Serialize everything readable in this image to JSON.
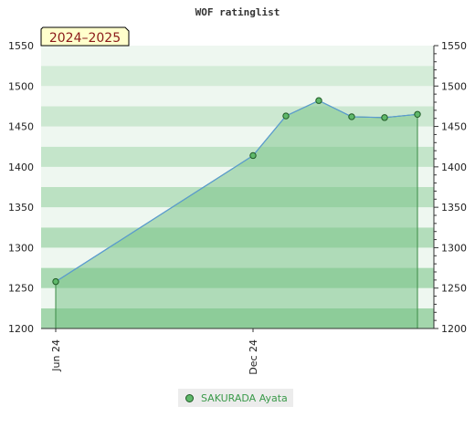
{
  "chart_data": {
    "type": "area",
    "title": "WOF ratinglist",
    "period_label": "2024–2025",
    "ylim": [
      1200,
      1550
    ],
    "yticks": [
      1200,
      1250,
      1300,
      1350,
      1400,
      1450,
      1500,
      1550
    ],
    "xticks": [
      {
        "label": "Jun 24",
        "x": 0
      },
      {
        "label": "Dec 24",
        "x": 6
      }
    ],
    "series": [
      {
        "name": "SAKURADA Ayata",
        "points": [
          {
            "x": 0,
            "y": 1258
          },
          {
            "x": 6,
            "y": 1414
          },
          {
            "x": 7,
            "y": 1463
          },
          {
            "x": 8,
            "y": 1482
          },
          {
            "x": 9,
            "y": 1462
          },
          {
            "x": 10,
            "y": 1461
          },
          {
            "x": 11,
            "y": 1465
          }
        ]
      }
    ],
    "colors": {
      "line": "#5b9bd5",
      "fill": "#7cc48a",
      "marker": "#5fb86a",
      "marker_stroke": "#1f5a25",
      "band_dark": "#9ed4a8",
      "band_light": "#eef7f0"
    },
    "grid": true,
    "legend_position": "bottom"
  }
}
